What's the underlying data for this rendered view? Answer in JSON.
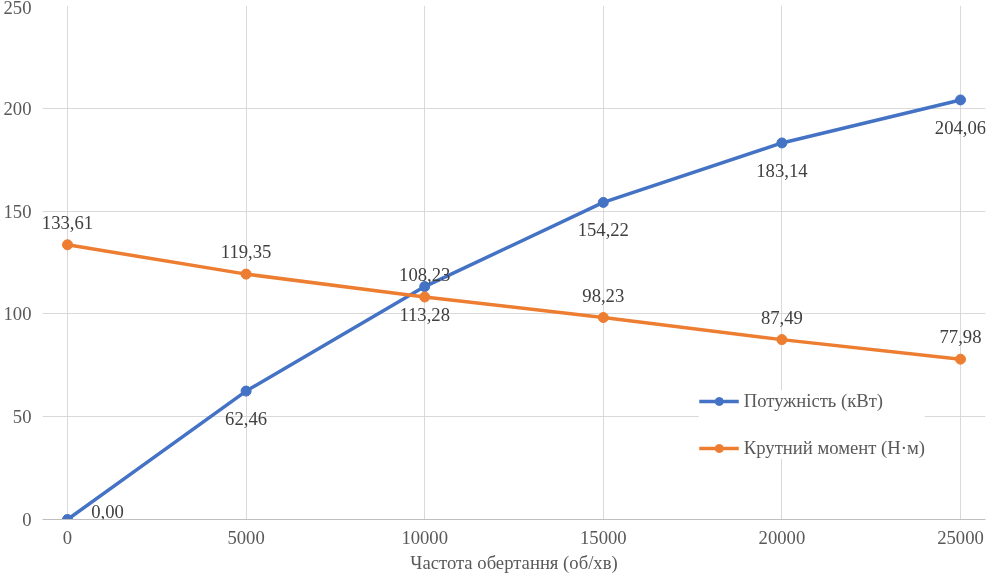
{
  "chart_data": {
    "type": "line",
    "xlabel": "Частота обертання (об/хв)",
    "x": [
      0,
      5000,
      10000,
      15000,
      20000,
      25000
    ],
    "series": [
      {
        "name": "Потужність (кВт)",
        "color": "#4472c4",
        "values": [
          0,
          62.46,
          113.28,
          154.22,
          183.14,
          204.06
        ],
        "value_labels": [
          "0,00",
          "62,46",
          "113,28",
          "154,22",
          "183,14",
          "204,06"
        ]
      },
      {
        "name": "Крутний момент (Н·м)",
        "color": "#ed7d31",
        "values": [
          133.61,
          119.35,
          108.23,
          98.23,
          87.49,
          77.98
        ],
        "value_labels": [
          "133,61",
          "119,35",
          "108,23",
          "98,23",
          "87,49",
          "77,98"
        ]
      }
    ],
    "xlim": [
      -700,
      25700
    ],
    "xticks": [
      0,
      5000,
      10000,
      15000,
      20000,
      25000
    ],
    "ylim": [
      0,
      250
    ],
    "yticks": [
      0,
      50,
      100,
      150,
      200,
      250
    ],
    "grid": true,
    "legend": "bottom right",
    "marker": "circle",
    "line_style": "solid"
  }
}
